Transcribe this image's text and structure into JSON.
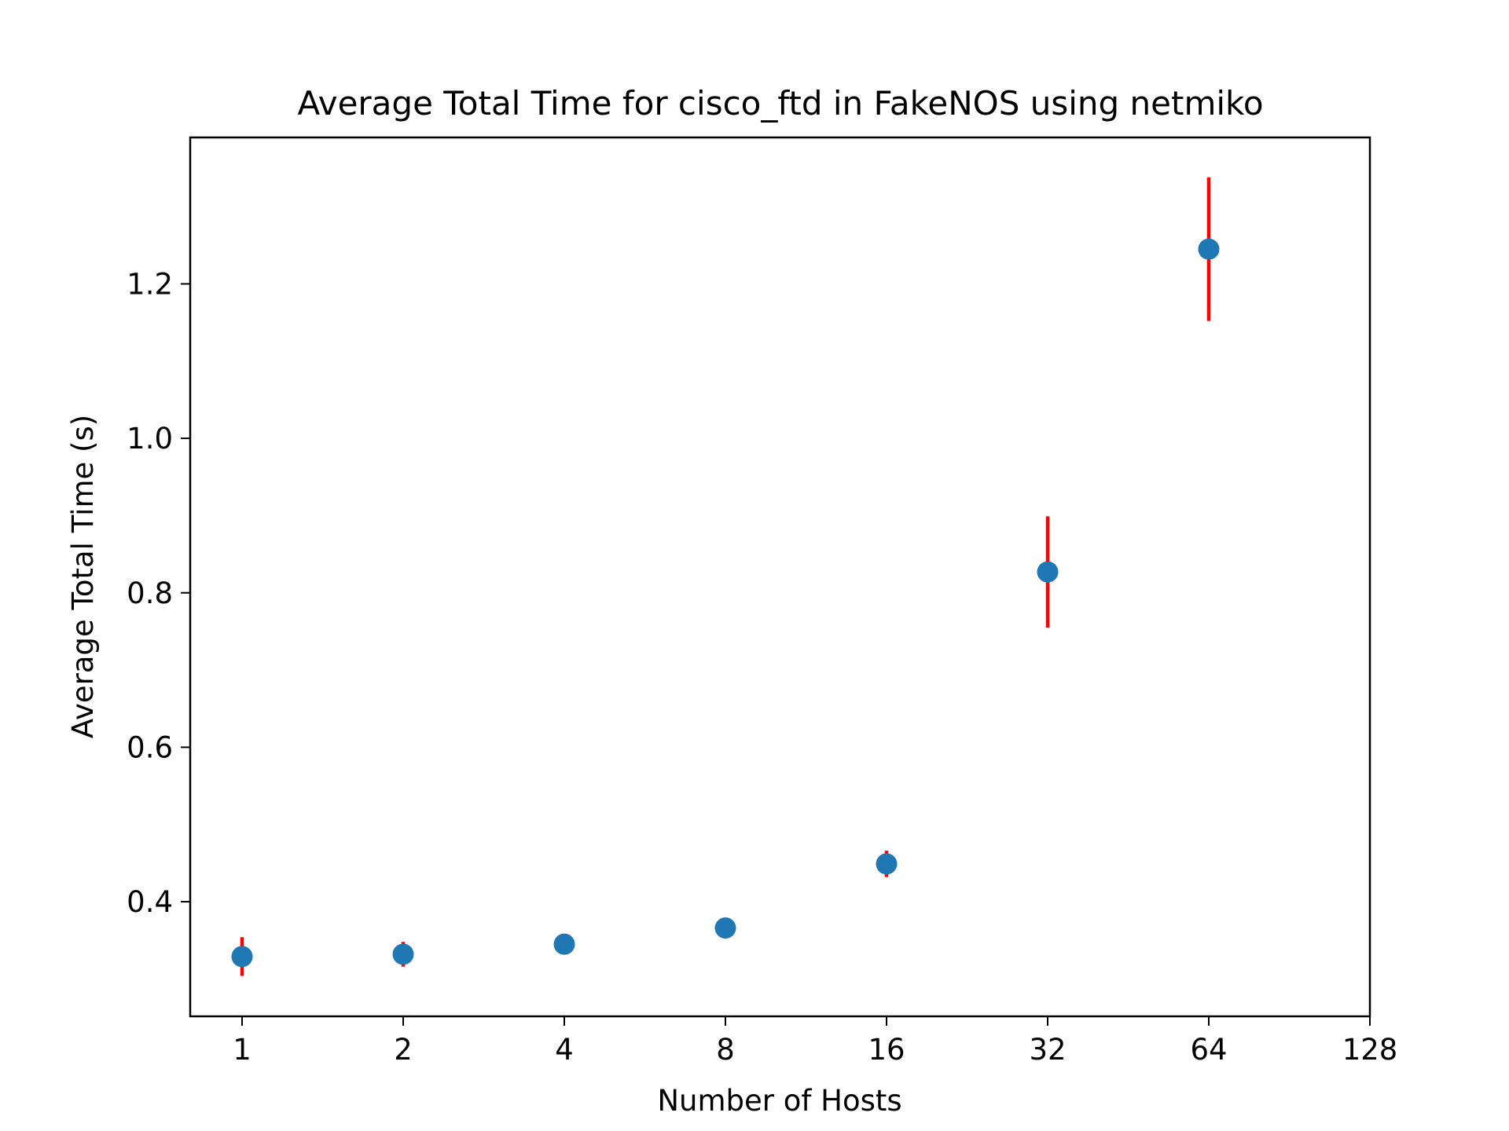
{
  "chart_data": {
    "type": "scatter",
    "title": "Average Total Time for cisco_ftd in FakeNOS using netmiko",
    "xlabel": "Number of Hosts",
    "ylabel": "Average Total Time (s)",
    "x_scale": "log2",
    "xlim": [
      0.8,
      128
    ],
    "ylim": [
      0.2516,
      1.3896
    ],
    "x_ticks": [
      1,
      2,
      4,
      8,
      16,
      32,
      64,
      128
    ],
    "x_tick_labels": [
      "1",
      "2",
      "4",
      "8",
      "16",
      "32",
      "64",
      "128"
    ],
    "y_ticks": [
      0.4,
      0.6,
      0.8,
      1.0,
      1.2
    ],
    "y_tick_labels": [
      "0.4",
      "0.6",
      "0.8",
      "1.0",
      "1.2"
    ],
    "grid": false,
    "legend": "none",
    "series": [
      {
        "x": [
          1,
          2,
          4,
          8,
          16,
          32,
          64
        ],
        "y": [
          0.329,
          0.332,
          0.345,
          0.366,
          0.449,
          0.827,
          1.245
        ],
        "yerr": [
          0.025,
          0.016,
          0.002,
          0.003,
          0.017,
          0.072,
          0.093
        ],
        "marker_color": "#1f77b4",
        "errorbar_color": "#ff0000"
      }
    ]
  }
}
